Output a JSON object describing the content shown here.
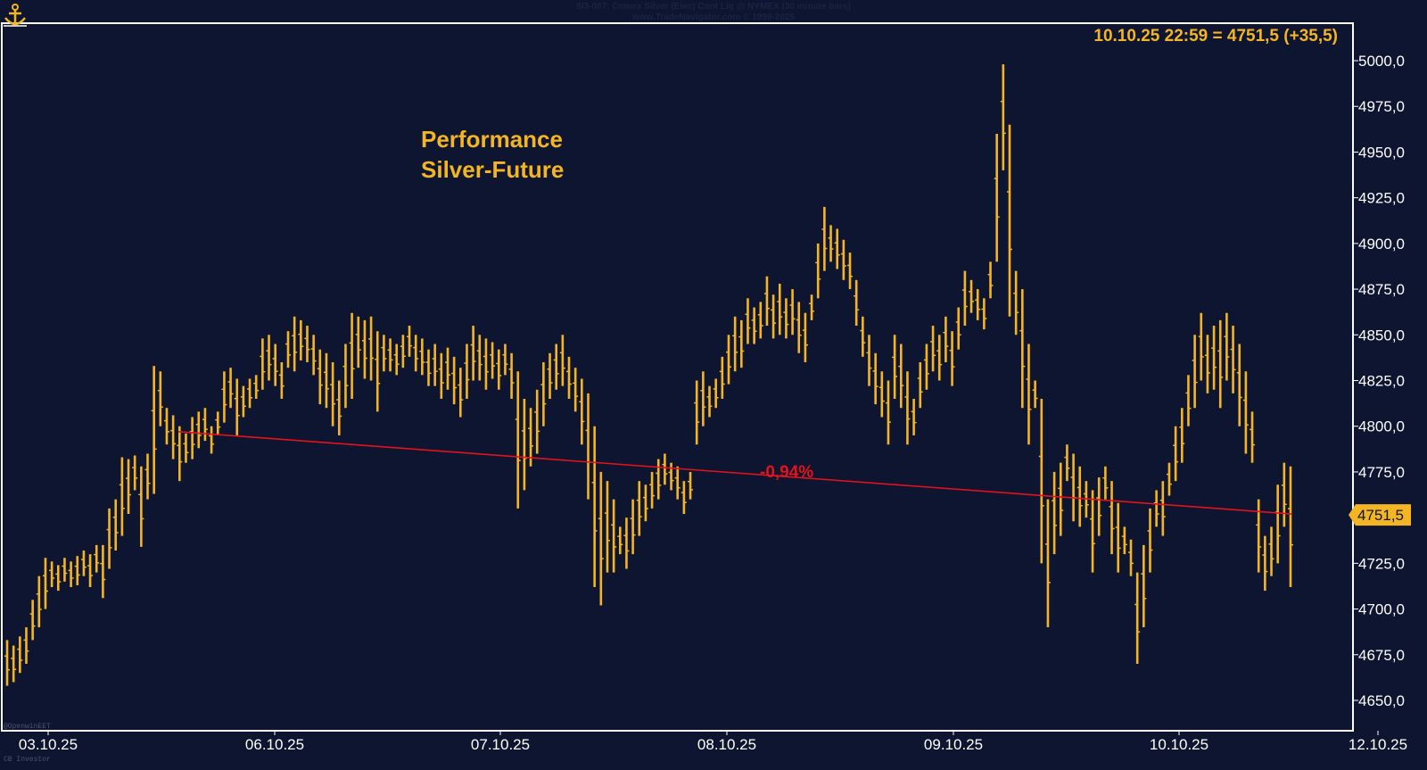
{
  "header": {
    "source_line": "$I3-087: Comex Silver (Elec) Cont Liq @ NYMEX  (30 minute bars)",
    "copyright_line": "www.TradeNavigator.com © 1999-2025",
    "last_quote": "10.10.25 22:59 = 4751,5 (+35,5)"
  },
  "annotation": {
    "title_line1": "Performance",
    "title_line2": "Silver-Future",
    "trend_label": "-0,94%"
  },
  "footer": {
    "tag1": "@OpenwinEET",
    "tag2": "CB Investor"
  },
  "colors": {
    "background": "#0d1530",
    "bars": "#f5b523",
    "trendline": "#e3121b",
    "axis_text": "#ffffff",
    "accent_text": "#f5b523"
  },
  "chart_data": {
    "type": "bar",
    "subtype": "ohlc",
    "title": "",
    "xlabel": "",
    "ylabel": "",
    "ylim": [
      4640,
      5018
    ],
    "y_ticks": [
      "5000,0",
      "4975,0",
      "4950,0",
      "4925,0",
      "4900,0",
      "4875,0",
      "4850,0",
      "4825,0",
      "4800,0",
      "4775,0",
      "4750,0",
      "4725,0",
      "4700,0",
      "4675,0",
      "4650,0"
    ],
    "y_tick_values": [
      5000,
      4975,
      4950,
      4925,
      4900,
      4875,
      4850,
      4825,
      4800,
      4775,
      4750,
      4725,
      4700,
      4675,
      4650
    ],
    "x_ticks": [
      "03.10.25",
      "06.10.25",
      "07.10.25",
      "08.10.25",
      "09.10.25",
      "10.10.25",
      "12.10.25"
    ],
    "last_price_label": "4751,5",
    "last_price": 4751.5,
    "trend_line": {
      "start_price": 4797,
      "end_price": 4752,
      "change": "-0,94%"
    },
    "bars": [
      [
        4683,
        4658
      ],
      [
        4680,
        4660
      ],
      [
        4685,
        4665
      ],
      [
        4690,
        4670
      ],
      [
        4705,
        4683
      ],
      [
        4718,
        4690
      ],
      [
        4728,
        4700
      ],
      [
        4726,
        4712
      ],
      [
        4724,
        4710
      ],
      [
        4728,
        4715
      ],
      [
        4726,
        4712
      ],
      [
        4729,
        4713
      ],
      [
        4732,
        4718
      ],
      [
        4730,
        4712
      ],
      [
        4735,
        4720
      ],
      [
        4735,
        4706
      ],
      [
        4755,
        4722
      ],
      [
        4760,
        4732
      ],
      [
        4783,
        4740
      ],
      [
        4782,
        4752
      ],
      [
        4784,
        4765
      ],
      [
        4778,
        4734
      ],
      [
        4785,
        4760
      ],
      [
        4833,
        4763
      ],
      [
        4830,
        4800
      ],
      [
        4810,
        4790
      ],
      [
        4806,
        4782
      ],
      [
        4800,
        4770
      ],
      [
        4796,
        4780
      ],
      [
        4805,
        4782
      ],
      [
        4808,
        4788
      ],
      [
        4810,
        4792
      ],
      [
        4800,
        4785
      ],
      [
        4808,
        4795
      ],
      [
        4830,
        4802
      ],
      [
        4832,
        4810
      ],
      [
        4826,
        4795
      ],
      [
        4822,
        4805
      ],
      [
        4826,
        4810
      ],
      [
        4828,
        4815
      ],
      [
        4848,
        4820
      ],
      [
        4850,
        4825
      ],
      [
        4845,
        4822
      ],
      [
        4835,
        4815
      ],
      [
        4852,
        4832
      ],
      [
        4860,
        4830
      ],
      [
        4858,
        4836
      ],
      [
        4855,
        4835
      ],
      [
        4850,
        4828
      ],
      [
        4842,
        4812
      ],
      [
        4840,
        4810
      ],
      [
        4835,
        4800
      ],
      [
        4825,
        4795
      ],
      [
        4845,
        4810
      ],
      [
        4862,
        4815
      ],
      [
        4860,
        4832
      ],
      [
        4858,
        4826
      ],
      [
        4860,
        4825
      ],
      [
        4852,
        4808
      ],
      [
        4850,
        4830
      ],
      [
        4848,
        4830
      ],
      [
        4845,
        4828
      ],
      [
        4850,
        4832
      ],
      [
        4855,
        4838
      ],
      [
        4850,
        4830
      ],
      [
        4848,
        4828
      ],
      [
        4842,
        4822
      ],
      [
        4845,
        4822
      ],
      [
        4840,
        4815
      ],
      [
        4843,
        4820
      ],
      [
        4838,
        4812
      ],
      [
        4832,
        4805
      ],
      [
        4845,
        4815
      ],
      [
        4855,
        4825
      ],
      [
        4850,
        4825
      ],
      [
        4848,
        4820
      ],
      [
        4846,
        4826
      ],
      [
        4842,
        4820
      ],
      [
        4845,
        4828
      ],
      [
        4840,
        4815
      ],
      [
        4830,
        4755
      ],
      [
        4815,
        4765
      ],
      [
        4810,
        4778
      ],
      [
        4820,
        4785
      ],
      [
        4835,
        4800
      ],
      [
        4840,
        4815
      ],
      [
        4845,
        4820
      ],
      [
        4850,
        4822
      ],
      [
        4838,
        4815
      ],
      [
        4832,
        4808
      ],
      [
        4826,
        4790
      ],
      [
        4818,
        4760
      ],
      [
        4800,
        4712
      ],
      [
        4775,
        4702
      ],
      [
        4770,
        4720
      ],
      [
        4760,
        4720
      ],
      [
        4745,
        4730
      ],
      [
        4750,
        4722
      ],
      [
        4760,
        4730
      ],
      [
        4770,
        4740
      ],
      [
        4768,
        4748
      ],
      [
        4775,
        4755
      ],
      [
        4782,
        4760
      ],
      [
        4785,
        4768
      ],
      [
        4780,
        4765
      ],
      [
        4778,
        4760
      ],
      [
        4770,
        4752
      ],
      [
        4775,
        4760
      ],
      [
        4825,
        4790
      ],
      [
        4830,
        4800
      ],
      [
        4822,
        4805
      ],
      [
        4826,
        4810
      ],
      [
        4838,
        4815
      ],
      [
        4850,
        4823
      ],
      [
        4860,
        4830
      ],
      [
        4858,
        4832
      ],
      [
        4870,
        4845
      ],
      [
        4865,
        4845
      ],
      [
        4868,
        4848
      ],
      [
        4882,
        4855
      ],
      [
        4872,
        4848
      ],
      [
        4878,
        4850
      ],
      [
        4870,
        4848
      ],
      [
        4875,
        4850
      ],
      [
        4868,
        4840
      ],
      [
        4862,
        4835
      ],
      [
        4872,
        4858
      ],
      [
        4900,
        4870
      ],
      [
        4920,
        4885
      ],
      [
        4910,
        4890
      ],
      [
        4908,
        4886
      ],
      [
        4902,
        4880
      ],
      [
        4895,
        4875
      ],
      [
        4880,
        4855
      ],
      [
        4860,
        4838
      ],
      [
        4850,
        4822
      ],
      [
        4840,
        4812
      ],
      [
        4830,
        4805
      ],
      [
        4825,
        4790
      ],
      [
        4850,
        4815
      ],
      [
        4845,
        4810
      ],
      [
        4830,
        4790
      ],
      [
        4815,
        4795
      ],
      [
        4835,
        4810
      ],
      [
        4845,
        4820
      ],
      [
        4855,
        4830
      ],
      [
        4850,
        4825
      ],
      [
        4860,
        4835
      ],
      [
        4852,
        4822
      ],
      [
        4865,
        4842
      ],
      [
        4885,
        4855
      ],
      [
        4880,
        4862
      ],
      [
        4875,
        4858
      ],
      [
        4870,
        4853
      ],
      [
        4890,
        4870
      ],
      [
        4960,
        4890
      ],
      [
        4998,
        4940
      ],
      [
        4965,
        4860
      ],
      [
        4885,
        4850
      ],
      [
        4875,
        4810
      ],
      [
        4845,
        4790
      ],
      [
        4825,
        4810
      ],
      [
        4815,
        4725
      ],
      [
        4760,
        4690
      ],
      [
        4775,
        4730
      ],
      [
        4780,
        4740
      ],
      [
        4790,
        4770
      ],
      [
        4785,
        4748
      ],
      [
        4778,
        4745
      ],
      [
        4770,
        4750
      ],
      [
        4765,
        4720
      ],
      [
        4772,
        4740
      ],
      [
        4778,
        4760
      ],
      [
        4770,
        4730
      ],
      [
        4758,
        4720
      ],
      [
        4745,
        4730
      ],
      [
        4738,
        4718
      ],
      [
        4720,
        4670
      ],
      [
        4735,
        4690
      ],
      [
        4755,
        4720
      ],
      [
        4765,
        4745
      ],
      [
        4770,
        4740
      ],
      [
        4780,
        4762
      ],
      [
        4800,
        4770
      ],
      [
        4810,
        4780
      ],
      [
        4828,
        4800
      ],
      [
        4850,
        4810
      ],
      [
        4862,
        4825
      ],
      [
        4850,
        4818
      ],
      [
        4855,
        4820
      ],
      [
        4858,
        4810
      ],
      [
        4862,
        4825
      ],
      [
        4855,
        4818
      ],
      [
        4845,
        4800
      ],
      [
        4830,
        4785
      ],
      [
        4808,
        4780
      ],
      [
        4760,
        4720
      ],
      [
        4740,
        4710
      ],
      [
        4745,
        4718
      ],
      [
        4768,
        4725
      ],
      [
        4780,
        4745
      ],
      [
        4778,
        4712
      ]
    ]
  }
}
